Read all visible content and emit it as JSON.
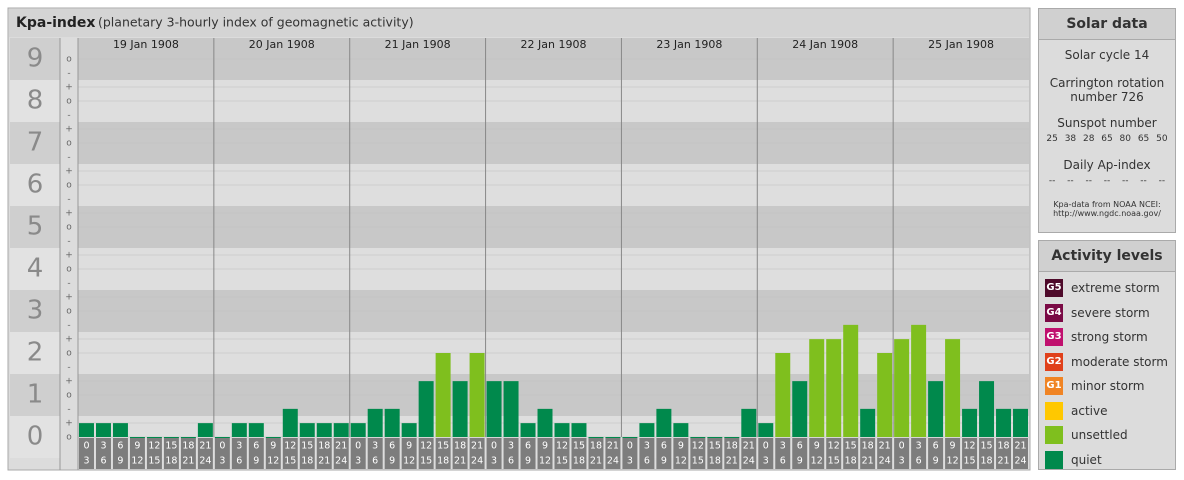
{
  "chart_data": {
    "type": "bar",
    "title": "Kpa-index",
    "subtitle": "(planetary 3-hourly index of geomagnetic activity)",
    "ylim": [
      0,
      9.5
    ],
    "yticks": [
      0,
      1,
      2,
      3,
      4,
      5,
      6,
      7,
      8,
      9
    ],
    "yminor_labels": [
      "o",
      "+",
      "-"
    ],
    "intervals": [
      [
        "0",
        "3"
      ],
      [
        "3",
        "6"
      ],
      [
        "6",
        "9"
      ],
      [
        "9",
        "12"
      ],
      [
        "12",
        "15"
      ],
      [
        "15",
        "18"
      ],
      [
        "18",
        "21"
      ],
      [
        "21",
        "24"
      ]
    ],
    "days": [
      {
        "date": "19 Jan 1908",
        "values": [
          0.33,
          0.33,
          0.33,
          0,
          0,
          0,
          0,
          0.33
        ],
        "colors": [
          "#00894c",
          "#00894c",
          "#00894c",
          "#00894c",
          "#00894c",
          "#00894c",
          "#00894c",
          "#00894c"
        ]
      },
      {
        "date": "20 Jan 1908",
        "values": [
          0,
          0.33,
          0.33,
          0,
          0.67,
          0.33,
          0.33,
          0.33
        ],
        "colors": [
          "#00894c",
          "#00894c",
          "#00894c",
          "#00894c",
          "#00894c",
          "#00894c",
          "#00894c",
          "#00894c"
        ]
      },
      {
        "date": "21 Jan 1908",
        "values": [
          0.33,
          0.67,
          0.67,
          0.33,
          1.33,
          2,
          1.33,
          2
        ],
        "colors": [
          "#00894c",
          "#00894c",
          "#00894c",
          "#00894c",
          "#00894c",
          "#7fbf1e",
          "#00894c",
          "#7fbf1e"
        ]
      },
      {
        "date": "22 Jan 1908",
        "values": [
          1.33,
          1.33,
          0.33,
          0.67,
          0.33,
          0.33,
          0,
          0
        ],
        "colors": [
          "#00894c",
          "#00894c",
          "#00894c",
          "#00894c",
          "#00894c",
          "#00894c",
          "#00894c",
          "#00894c"
        ]
      },
      {
        "date": "23 Jan 1908",
        "values": [
          0,
          0.33,
          0.67,
          0.33,
          0,
          0,
          0,
          0.67
        ],
        "colors": [
          "#00894c",
          "#00894c",
          "#00894c",
          "#00894c",
          "#00894c",
          "#00894c",
          "#00894c",
          "#00894c"
        ]
      },
      {
        "date": "24 Jan 1908",
        "values": [
          0.33,
          2,
          1.33,
          2.33,
          2.33,
          2.67,
          0.67,
          2
        ],
        "colors": [
          "#00894c",
          "#7fbf1e",
          "#00894c",
          "#7fbf1e",
          "#7fbf1e",
          "#7fbf1e",
          "#00894c",
          "#7fbf1e"
        ]
      },
      {
        "date": "25 Jan 1908",
        "values": [
          2.33,
          2.67,
          1.33,
          2.33,
          0.67,
          1.33,
          0.67,
          0.67
        ],
        "colors": [
          "#7fbf1e",
          "#7fbf1e",
          "#00894c",
          "#7fbf1e",
          "#00894c",
          "#00894c",
          "#00894c",
          "#00894c"
        ]
      }
    ]
  },
  "solar": {
    "title": "Solar data",
    "cycle": "Solar cycle 14",
    "rotation": "Carrington rotation number 726",
    "sunspot_label": "Sunspot number",
    "sunspots": [
      25,
      38,
      28,
      65,
      80,
      65,
      50
    ],
    "ap_label": "Daily Ap-index",
    "ap": [
      "--",
      "--",
      "--",
      "--",
      "--",
      "--",
      "--"
    ],
    "source": "Kpa-data from NOAA NCEI:",
    "source_url": "http://www.ngdc.noaa.gov/"
  },
  "activity": {
    "title": "Activity levels",
    "levels": [
      {
        "badge": "G5",
        "name": "extreme storm",
        "color": "#4e0a2a"
      },
      {
        "badge": "G4",
        "name": "severe storm",
        "color": "#7a0a45"
      },
      {
        "badge": "G3",
        "name": "strong storm",
        "color": "#c0106e"
      },
      {
        "badge": "G2",
        "name": "moderate storm",
        "color": "#e0401a"
      },
      {
        "badge": "G1",
        "name": "minor storm",
        "color": "#f08424"
      },
      {
        "name": "active",
        "color": "#ffc800"
      },
      {
        "name": "unsettled",
        "color": "#7fbf1e"
      },
      {
        "name": "quiet",
        "color": "#00894c"
      }
    ]
  }
}
